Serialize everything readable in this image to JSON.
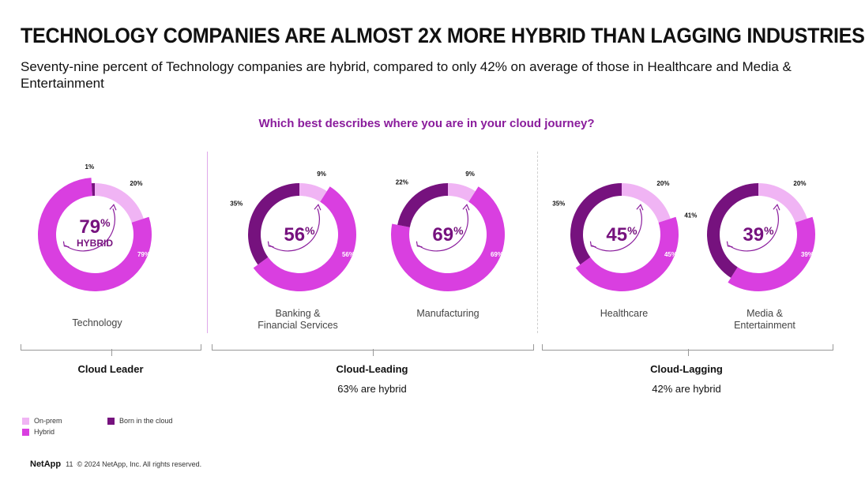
{
  "header": {
    "title": "TECHNOLOGY COMPANIES ARE ALMOST 2X MORE HYBRID THAN LAGGING INDUSTRIES",
    "subtitle": "Seventy-nine percent of Technology companies are hybrid, compared to only 42% on average of those in Healthcare and Media & Entertainment"
  },
  "chart_data": {
    "type": "pie",
    "title": "Which best describes where you are in your cloud journey?",
    "series_names": [
      "On-prem",
      "Hybrid",
      "Born in the cloud"
    ],
    "colors": {
      "on_prem": "#f0b4f4",
      "hybrid": "#d93fe0",
      "born": "#76127e",
      "accent": "#8a1c9c"
    },
    "donuts": [
      {
        "category": "Technology",
        "on_prem": 20,
        "hybrid": 79,
        "born": 1,
        "center_value": "79",
        "center_label": "HYBRID",
        "labels": {
          "on_prem": "20%",
          "hybrid": "79%",
          "born": "1%"
        }
      },
      {
        "category": "Banking & Financial Services",
        "on_prem": 9,
        "hybrid": 56,
        "born": 35,
        "center_value": "56",
        "center_label": "",
        "labels": {
          "on_prem": "9%",
          "hybrid": "56%",
          "born": "35%"
        }
      },
      {
        "category": "Manufacturing",
        "on_prem": 9,
        "hybrid": 69,
        "born": 22,
        "center_value": "69",
        "center_label": "",
        "labels": {
          "on_prem": "9%",
          "hybrid": "69%",
          "born": "22%"
        }
      },
      {
        "category": "Healthcare",
        "on_prem": 20,
        "hybrid": 45,
        "born": 35,
        "center_value": "45",
        "center_label": "",
        "labels": {
          "on_prem": "20%",
          "hybrid": "45%",
          "born": "35%"
        }
      },
      {
        "category": "Media & Entertainment",
        "on_prem": 20,
        "hybrid": 39,
        "born": 41,
        "center_value": "39",
        "center_label": "",
        "labels": {
          "on_prem": "20%",
          "hybrid": "39%",
          "born": "41%"
        }
      }
    ],
    "percent_sign": "%"
  },
  "categories": {
    "technology": "Technology",
    "banking_line1": "Banking &",
    "banking_line2": "Financial Services",
    "manufacturing": "Manufacturing",
    "healthcare": "Healthcare",
    "media_line1": "Media &",
    "media_line2": "Entertainment"
  },
  "groups": {
    "leader": {
      "label": "Cloud Leader"
    },
    "leading": {
      "label": "Cloud-Leading",
      "sub": "63% are hybrid"
    },
    "lagging": {
      "label": "Cloud-Lagging",
      "sub": "42% are hybrid"
    }
  },
  "legend": {
    "on_prem": "On-prem",
    "hybrid": "Hybrid",
    "born": "Born in the cloud"
  },
  "footer": {
    "brand": "NetApp",
    "page": "11",
    "copyright": "© 2024 NetApp, Inc. All rights reserved."
  }
}
